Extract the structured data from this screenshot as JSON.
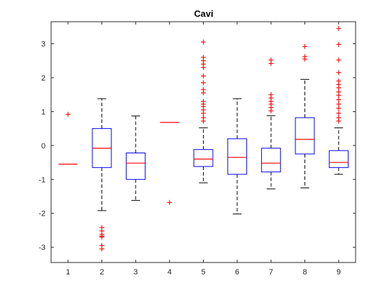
{
  "chart_data": {
    "type": "boxplot",
    "title": "Cavi",
    "xlabel": "",
    "ylabel": "",
    "categories": [
      "1",
      "2",
      "3",
      "4",
      "5",
      "6",
      "7",
      "8",
      "9"
    ],
    "ylim": [
      -3.45,
      3.65
    ],
    "yticks": [
      -3,
      -2,
      -1,
      0,
      1,
      2,
      3
    ],
    "grid": false,
    "colors": {
      "box": "#0000ff",
      "median": "#ff0000",
      "whisker": "#000000",
      "outlier": "#ff0000",
      "axis": "#262626"
    },
    "boxes": [
      {
        "category": "1",
        "q1": -0.55,
        "median": -0.55,
        "q3": -0.55,
        "whisker_low": -0.55,
        "whisker_high": -0.55,
        "outliers": [
          0.92
        ]
      },
      {
        "category": "2",
        "q1": -0.65,
        "median": -0.08,
        "q3": 0.5,
        "whisker_low": -1.92,
        "whisker_high": 1.38,
        "outliers": [
          -2.42,
          -2.52,
          -2.62,
          -2.67,
          -2.7,
          -2.95,
          -3.05
        ]
      },
      {
        "category": "3",
        "q1": -1.0,
        "median": -0.52,
        "q3": -0.22,
        "whisker_low": -1.62,
        "whisker_high": 0.87,
        "outliers": []
      },
      {
        "category": "4",
        "q1": 0.68,
        "median": 0.68,
        "q3": 0.68,
        "whisker_low": 0.68,
        "whisker_high": 0.68,
        "outliers": [
          -1.68
        ]
      },
      {
        "category": "5",
        "q1": -0.62,
        "median": -0.4,
        "q3": -0.12,
        "whisker_low": -1.1,
        "whisker_high": 0.52,
        "outliers": [
          0.72,
          0.82,
          0.95,
          1.05,
          1.15,
          1.22,
          1.3,
          1.55,
          1.65,
          1.85,
          2.05,
          2.3,
          2.4,
          2.5,
          2.6,
          3.05
        ]
      },
      {
        "category": "6",
        "q1": -0.85,
        "median": -0.35,
        "q3": 0.2,
        "whisker_low": -2.02,
        "whisker_high": 1.38,
        "outliers": []
      },
      {
        "category": "7",
        "q1": -0.78,
        "median": -0.52,
        "q3": -0.08,
        "whisker_low": -1.28,
        "whisker_high": 0.88,
        "outliers": [
          1.02,
          1.12,
          1.22,
          1.3,
          1.4,
          1.5,
          2.42,
          2.52
        ]
      },
      {
        "category": "8",
        "q1": -0.25,
        "median": 0.18,
        "q3": 0.82,
        "whisker_low": -1.25,
        "whisker_high": 1.95,
        "outliers": [
          2.55,
          2.62,
          2.92
        ]
      },
      {
        "category": "9",
        "q1": -0.65,
        "median": -0.5,
        "q3": -0.15,
        "whisker_low": -0.85,
        "whisker_high": 0.52,
        "outliers": [
          0.72,
          0.82,
          0.95,
          1.1,
          1.22,
          1.35,
          1.48,
          1.58,
          1.7,
          1.8,
          1.9,
          2.15,
          2.52,
          2.98,
          3.45
        ]
      }
    ]
  }
}
